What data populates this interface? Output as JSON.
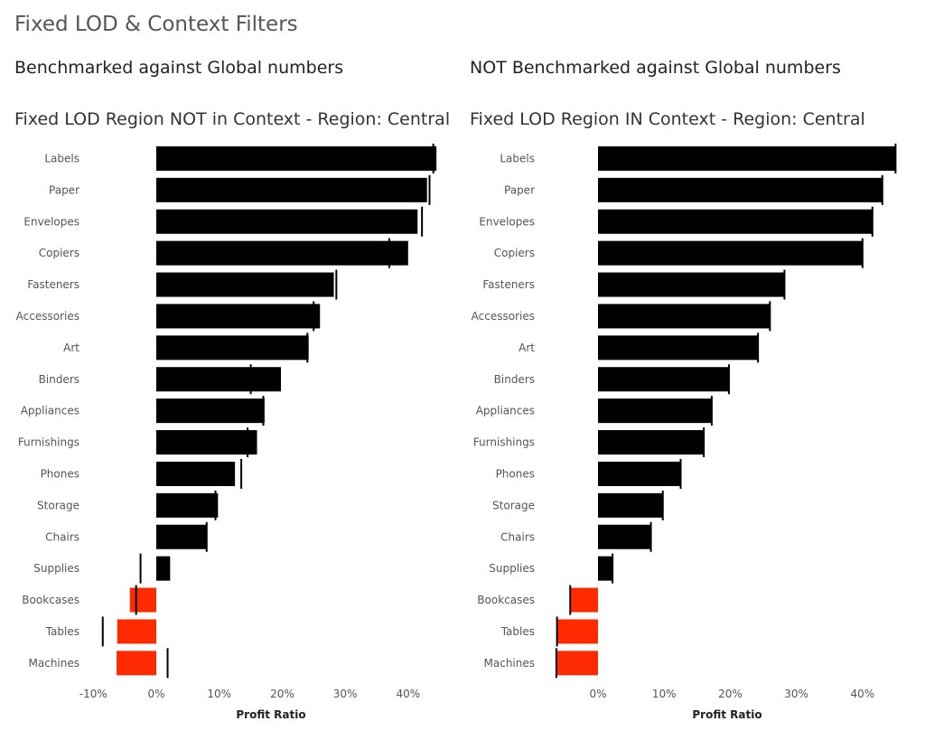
{
  "dashboard": {
    "title": "Fixed LOD & Context Filters"
  },
  "sections": {
    "left": "Benchmarked against Global numbers",
    "right": "NOT Benchmarked against Global numbers"
  },
  "colors": {
    "positive": "#000000",
    "negative": "#ff2a00",
    "reference_line": "#000000"
  },
  "chart_data": [
    {
      "type": "bar",
      "orientation": "horizontal",
      "title": "Fixed LOD Region  NOT in Context - Region: Central",
      "xlabel": "Profit Ratio",
      "ylabel": "",
      "xlim": [
        -13,
        46
      ],
      "xticks": [
        -10,
        0,
        10,
        20,
        30,
        40
      ],
      "tick_labels": [
        "-10%",
        "0%",
        "10%",
        "20%",
        "30%",
        "40%"
      ],
      "grid": false,
      "categories": [
        "Labels",
        "Paper",
        "Envelopes",
        "Copiers",
        "Fasteners",
        "Accessories",
        "Art",
        "Binders",
        "Appliances",
        "Furnishings",
        "Phones",
        "Storage",
        "Chairs",
        "Supplies",
        "Bookcases",
        "Tables",
        "Machines"
      ],
      "series": [
        {
          "name": "",
          "values": [
            44.5,
            43.0,
            41.5,
            40.0,
            28.2,
            26.0,
            24.2,
            19.8,
            17.2,
            16.0,
            12.5,
            9.8,
            8.0,
            2.2,
            -4.2,
            -6.2,
            -6.3
          ]
        },
        {
          "name": "",
          "mark": "reference-line",
          "values": [
            44.0,
            43.4,
            42.2,
            37.0,
            28.6,
            25.0,
            24.0,
            15.0,
            17.0,
            14.5,
            13.5,
            9.4,
            8.0,
            -2.5,
            -3.2,
            -8.5,
            1.8
          ]
        }
      ]
    },
    {
      "type": "bar",
      "orientation": "horizontal",
      "title": "Fixed LOD Region IN Context - Region: Central",
      "xlabel": "Profit Ratio",
      "ylabel": "",
      "xlim": [
        -6.3,
        45.5
      ],
      "xticks": [
        0,
        10,
        20,
        30,
        40
      ],
      "tick_labels": [
        "0%",
        "10%",
        "20%",
        "30%",
        "40%"
      ],
      "grid": false,
      "categories": [
        "Labels",
        "Paper",
        "Envelopes",
        "Copiers",
        "Fasteners",
        "Accessories",
        "Art",
        "Binders",
        "Appliances",
        "Furnishings",
        "Phones",
        "Storage",
        "Chairs",
        "Supplies",
        "Bookcases",
        "Tables",
        "Machines"
      ],
      "series": [
        {
          "name": "",
          "values": [
            45.0,
            43.0,
            41.5,
            40.0,
            28.2,
            26.0,
            24.2,
            19.8,
            17.2,
            16.0,
            12.5,
            9.8,
            8.0,
            2.2,
            -4.2,
            -6.2,
            -6.3
          ]
        },
        {
          "name": "",
          "mark": "reference-line",
          "values": [
            45.0,
            43.0,
            41.5,
            40.0,
            28.2,
            26.0,
            24.2,
            19.8,
            17.2,
            16.0,
            12.5,
            9.8,
            8.0,
            2.2,
            -4.2,
            -6.2,
            -6.3
          ]
        }
      ]
    }
  ]
}
